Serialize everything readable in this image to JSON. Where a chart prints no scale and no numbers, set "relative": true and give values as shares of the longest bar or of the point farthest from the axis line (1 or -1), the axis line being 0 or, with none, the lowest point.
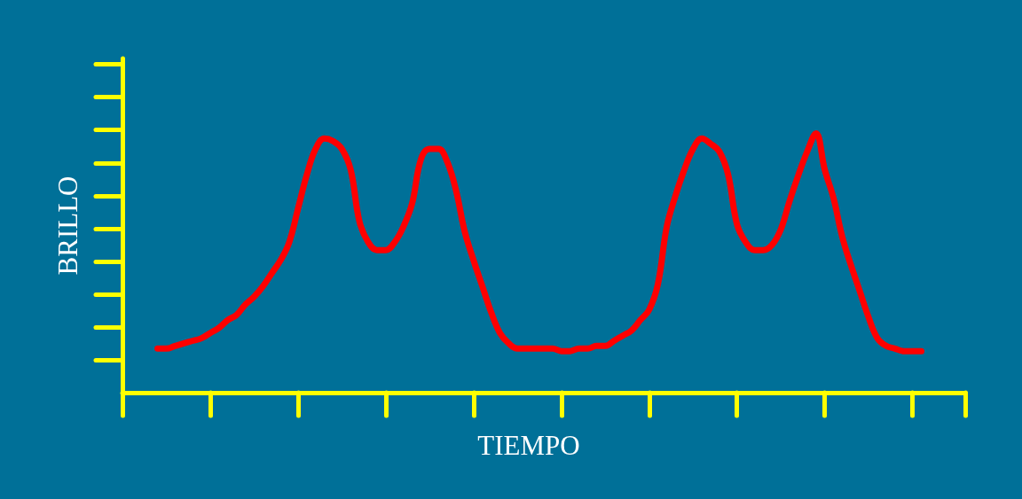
{
  "chart_data": {
    "type": "line",
    "xlabel": "TIEMPO",
    "ylabel": "BRILLO",
    "relative": true,
    "marker": "none",
    "line_style": "solid",
    "categories": [
      null,
      null,
      null,
      null,
      null,
      null,
      null,
      null,
      null,
      null,
      null,
      null,
      null,
      null,
      null,
      null,
      null,
      null,
      null,
      null,
      null,
      null,
      null,
      null,
      null,
      null,
      null,
      null,
      null,
      null,
      null,
      null,
      null,
      null,
      null,
      null,
      null,
      null,
      null,
      null,
      null,
      null,
      null,
      null,
      null,
      null,
      null,
      null,
      null,
      null,
      null,
      null,
      null,
      null,
      null,
      null,
      null,
      null,
      null,
      null,
      null,
      null,
      null,
      null,
      null,
      null,
      null,
      null,
      null,
      null,
      null,
      null,
      null,
      null,
      null,
      null,
      null,
      null,
      null,
      null,
      null,
      null,
      null,
      null,
      null,
      null,
      null,
      null,
      null,
      null,
      null,
      null,
      null,
      null,
      null,
      null,
      null
    ],
    "series": [
      {
        "color": "#ff0000",
        "values": [
          null,
          null,
          null,
          null,
          0.17,
          0.17,
          0.18,
          0.19,
          0.2,
          0.21,
          0.23,
          0.25,
          0.28,
          0.3,
          0.34,
          0.37,
          0.41,
          0.46,
          0.51,
          0.58,
          0.71,
          0.84,
          0.94,
          0.98,
          0.97,
          0.94,
          0.86,
          0.66,
          0.58,
          0.55,
          0.55,
          0.58,
          0.64,
          0.73,
          0.9,
          0.94,
          0.94,
          0.89,
          0.78,
          0.62,
          0.51,
          0.41,
          0.31,
          0.23,
          0.19,
          0.17,
          0.17,
          0.17,
          0.17,
          0.17,
          0.16,
          0.16,
          0.17,
          0.17,
          0.18,
          0.18,
          0.2,
          0.22,
          0.24,
          0.28,
          0.32,
          0.42,
          0.64,
          0.76,
          0.86,
          0.94,
          0.98,
          0.96,
          0.93,
          0.84,
          0.65,
          0.58,
          0.55,
          0.55,
          0.57,
          0.63,
          0.74,
          0.84,
          0.93,
          1.0,
          0.86,
          0.75,
          0.6,
          0.49,
          0.39,
          0.29,
          0.21,
          0.18,
          0.17,
          0.16,
          0.16,
          0.16,
          null,
          null,
          null,
          null,
          null
        ]
      }
    ]
  }
}
